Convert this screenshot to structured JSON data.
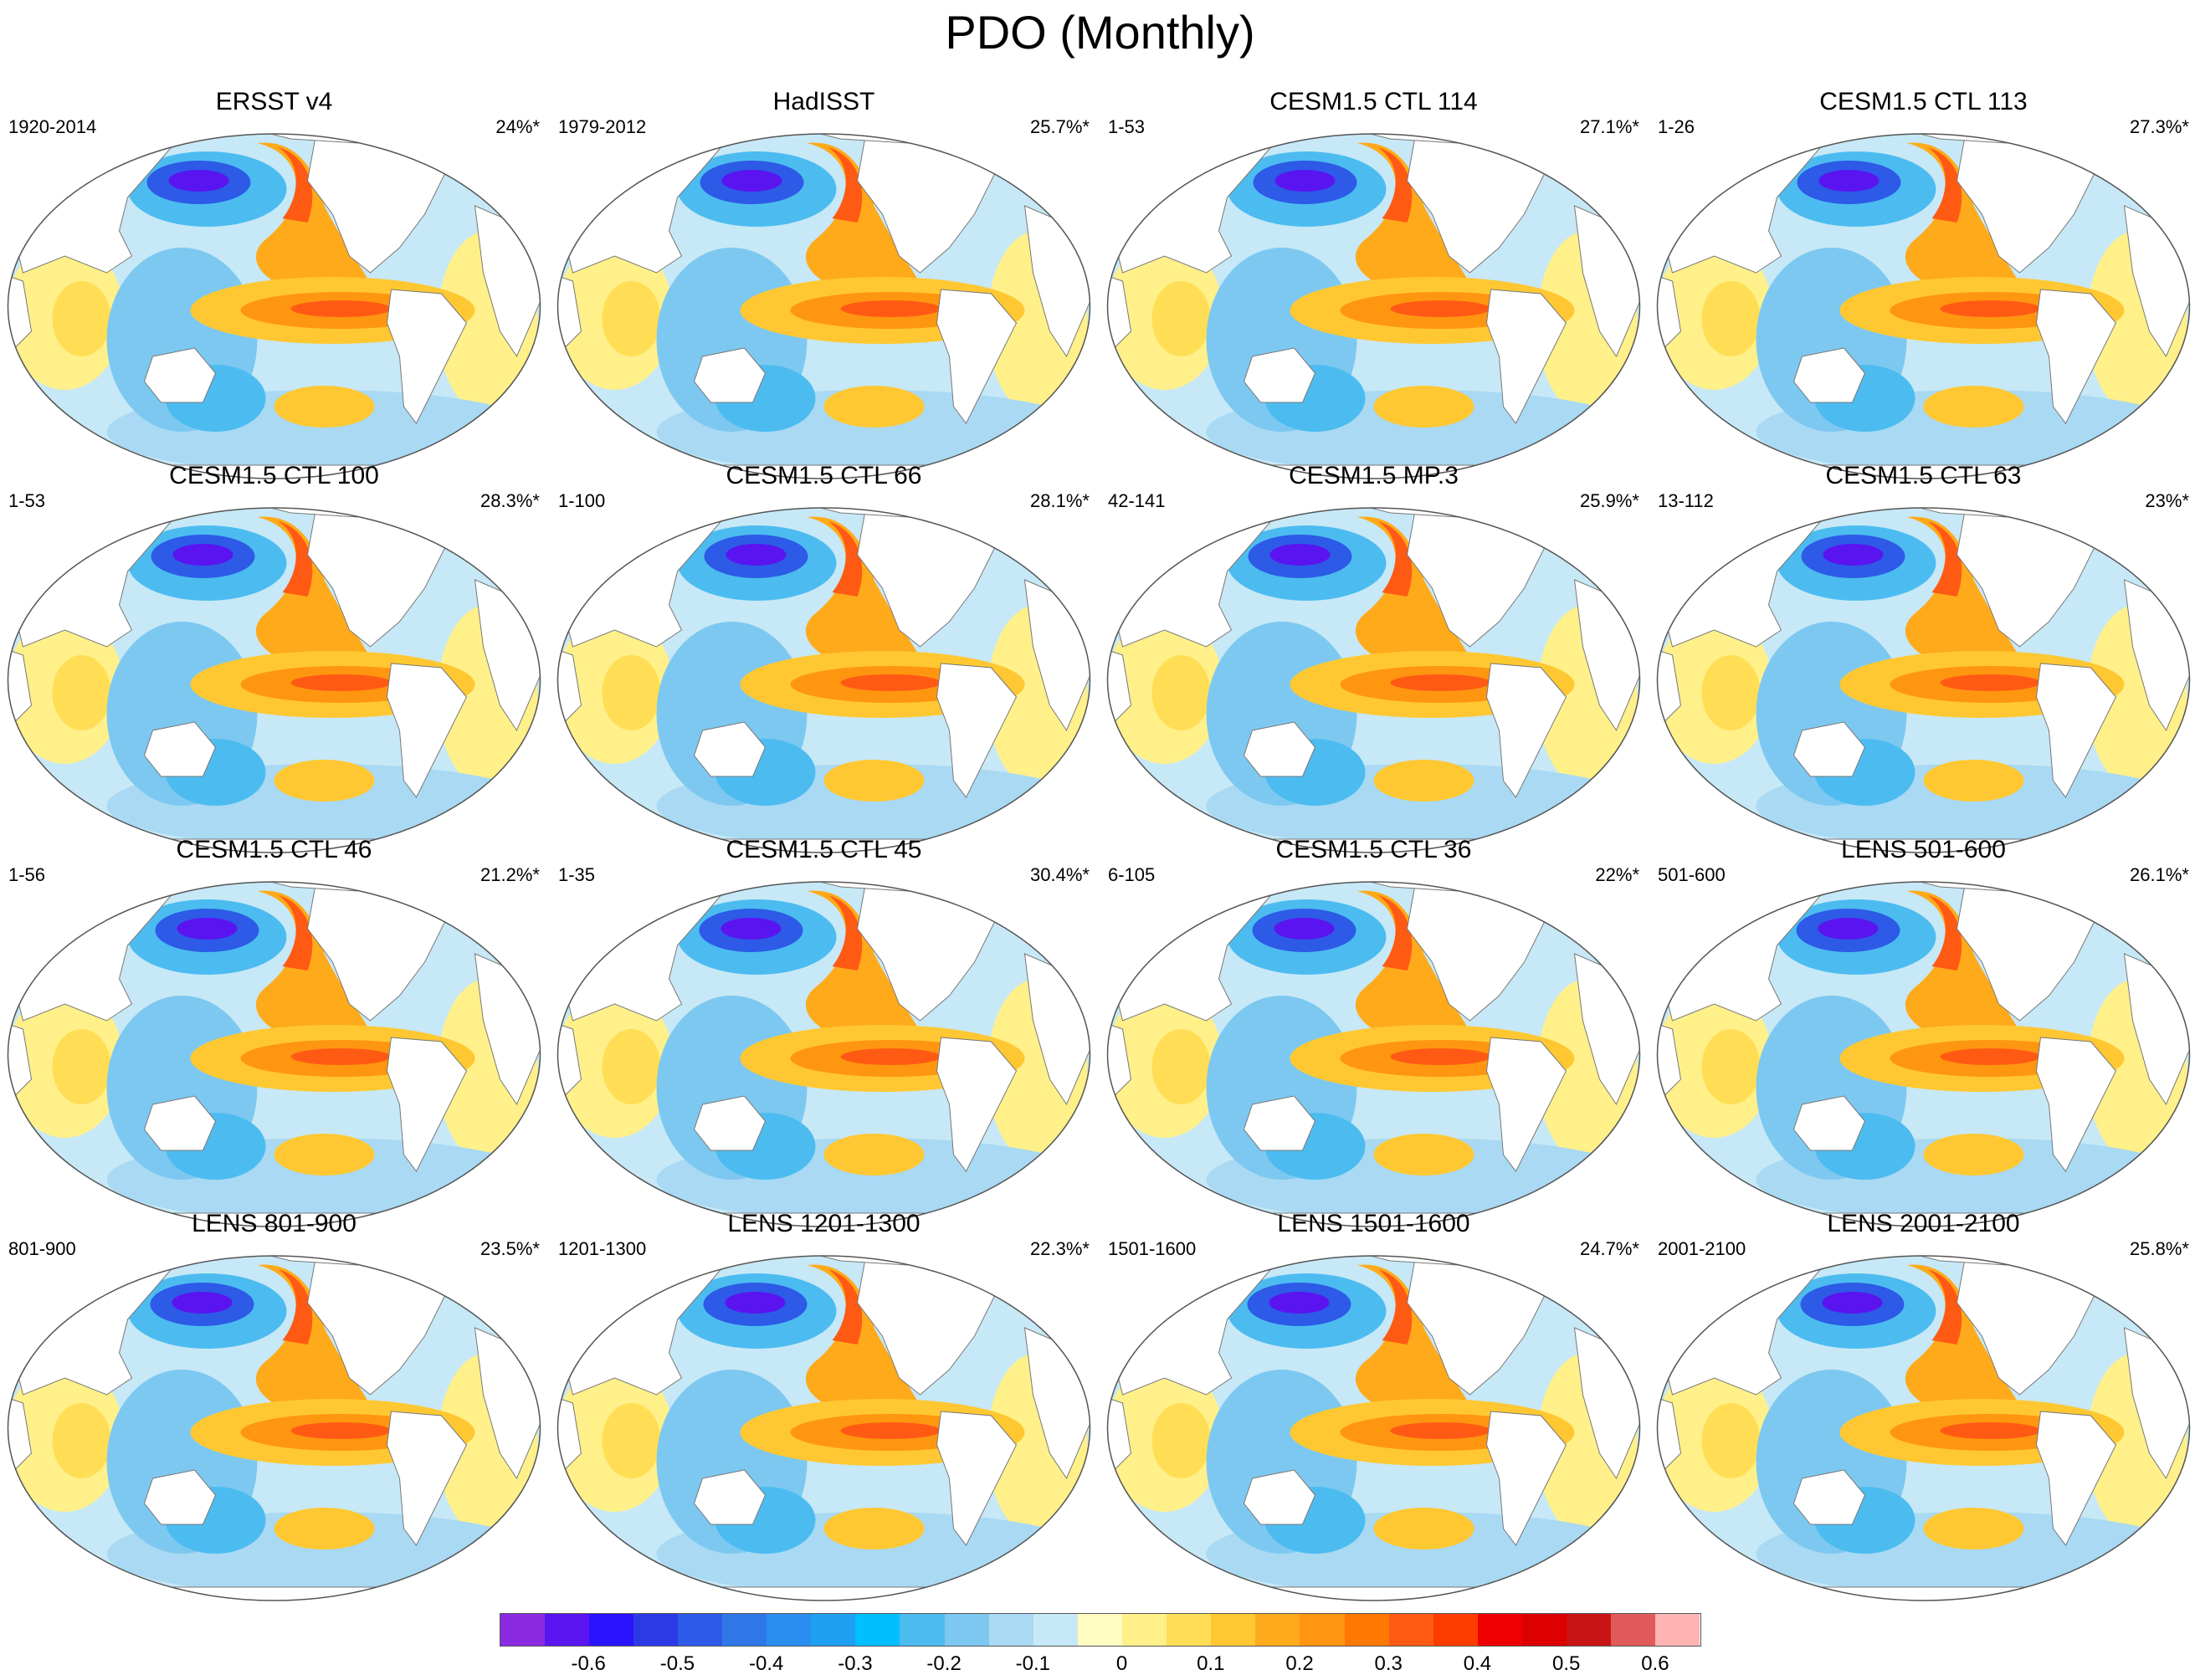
{
  "title": "PDO (Monthly)",
  "panels": [
    {
      "title": "ERSST v4",
      "years": "1920-2014",
      "percent": "24%*"
    },
    {
      "title": "HadISST",
      "years": "1979-2012",
      "percent": "25.7%*"
    },
    {
      "title": "CESM1.5 CTL 114",
      "years": "1-53",
      "percent": "27.1%*"
    },
    {
      "title": "CESM1.5 CTL 113",
      "years": "1-26",
      "percent": "27.3%*"
    },
    {
      "title": "CESM1.5 CTL 100",
      "years": "1-53",
      "percent": "28.3%*"
    },
    {
      "title": "CESM1.5 CTL 66",
      "years": "1-100",
      "percent": "28.1%*"
    },
    {
      "title": "CESM1.5 MP.3",
      "years": "42-141",
      "percent": "25.9%*"
    },
    {
      "title": "CESM1.5 CTL 63",
      "years": "13-112",
      "percent": "23%*"
    },
    {
      "title": "CESM1.5 CTL 46",
      "years": "1-56",
      "percent": "21.2%*"
    },
    {
      "title": "CESM1.5 CTL 45",
      "years": "1-35",
      "percent": "30.4%*"
    },
    {
      "title": "CESM1.5 CTL 36",
      "years": "6-105",
      "percent": "22%*"
    },
    {
      "title": "LENS 501-600",
      "years": "501-600",
      "percent": "26.1%*"
    },
    {
      "title": "LENS 801-900",
      "years": "801-900",
      "percent": "23.5%*"
    },
    {
      "title": "LENS 1201-1300",
      "years": "1201-1300",
      "percent": "22.3%*"
    },
    {
      "title": "LENS 1501-1600",
      "years": "1501-1600",
      "percent": "24.7%*"
    },
    {
      "title": "LENS 2001-2100",
      "years": "2001-2100",
      "percent": "25.8%*"
    }
  ],
  "colorbar": {
    "colors": [
      "#8a2be2",
      "#5a14f0",
      "#2a14ff",
      "#2b3ae6",
      "#2d5ae6",
      "#2f77e8",
      "#2a8ef0",
      "#1ea0f0",
      "#00bfff",
      "#4cbcf0",
      "#7dc8f0",
      "#a9d9f3",
      "#c7e8f6",
      "#fffcc2",
      "#fff08a",
      "#ffde55",
      "#ffc832",
      "#ffaa1a",
      "#ff9610",
      "#ff7800",
      "#ff5a14",
      "#ff3c00",
      "#f00000",
      "#dc0000",
      "#c81414",
      "#e05a5a",
      "#ffb4b4"
    ],
    "labels": [
      "-0.6",
      "-0.5",
      "-0.4",
      "-0.3",
      "-0.2",
      "-0.1",
      "0",
      "0.1",
      "0.2",
      "0.3",
      "0.4",
      "0.5",
      "0.6"
    ]
  }
}
